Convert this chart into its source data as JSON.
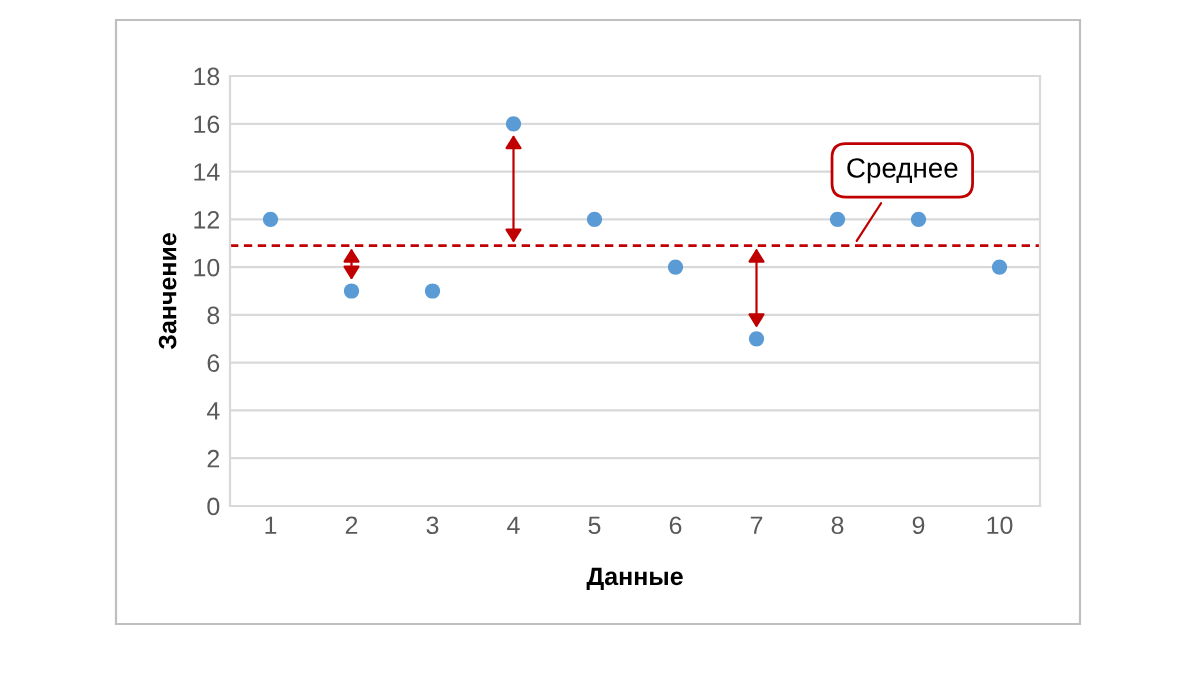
{
  "chart_data": {
    "type": "scatter",
    "xlabel": "Данные",
    "ylabel": "Занчение",
    "x": [
      1,
      2,
      3,
      4,
      5,
      6,
      7,
      8,
      9,
      10
    ],
    "series": [
      {
        "color": "#5b9bd5",
        "values": [
          12,
          9,
          9,
          16,
          12,
          10,
          7,
          12,
          12,
          10
        ]
      }
    ],
    "xlim": [
      0.5,
      10.5
    ],
    "xticks": [
      1,
      2,
      3,
      4,
      5,
      6,
      7,
      8,
      9,
      10
    ],
    "ylim": [
      0,
      18
    ],
    "yticks": [
      0,
      2,
      4,
      6,
      8,
      10,
      12,
      14,
      16,
      18
    ],
    "grid": "y",
    "marker": "circle",
    "ref_lines": [
      {
        "axis": "y",
        "value": 10.9,
        "label": "Среднее",
        "color": "#c00000",
        "line_style": "dashed"
      }
    ]
  }
}
